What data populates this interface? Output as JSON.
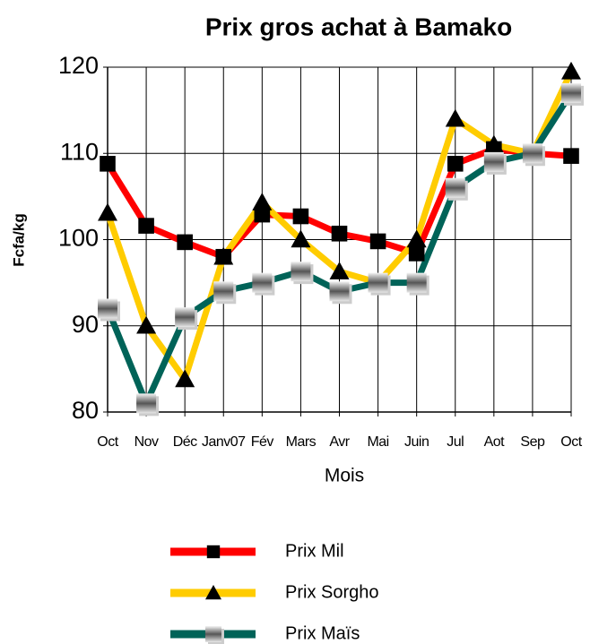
{
  "chart_data": {
    "type": "line",
    "title": "Prix  gros achat à Bamako",
    "xlabel": "Mois",
    "ylabel": "Fcfa/kg",
    "categories": [
      "Oct",
      "Nov",
      "Déc",
      "Janv07",
      "Fév",
      "Mars",
      "Avr",
      "Mai",
      "Juin",
      "Jul",
      "Aot",
      "Sep",
      "Oct"
    ],
    "series": [
      {
        "name": "Prix Mil",
        "color": "#ff0000",
        "marker": "square",
        "values": [
          108.8,
          101.6,
          99.7,
          98,
          102.9,
          102.7,
          100.7,
          99.8,
          98.4,
          108.8,
          110.5,
          110,
          109.7
        ]
      },
      {
        "name": "Prix Sorgho",
        "color": "#ffcc00",
        "marker": "triangle",
        "values": [
          103.1,
          90,
          83.8,
          98,
          104.3,
          100,
          96.3,
          95,
          100,
          114,
          111,
          110,
          119.5
        ]
      },
      {
        "name": "Prix Maïs",
        "color": "#006358",
        "marker": "shaded-square",
        "values": [
          92,
          81,
          91,
          94,
          95,
          96.3,
          94,
          95,
          95,
          106,
          109,
          110,
          117
        ]
      }
    ],
    "ylim": [
      80,
      120
    ],
    "yticks": [
      80,
      90,
      100,
      110,
      120
    ],
    "grid": true
  }
}
